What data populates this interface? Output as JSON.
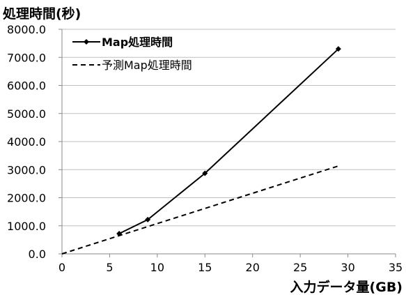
{
  "chart_data": {
    "type": "line",
    "ylabel": "処理時間(秒)",
    "xlabel": "入力データ量(GB)",
    "xlim": [
      0,
      35
    ],
    "ylim": [
      0,
      8000
    ],
    "x_ticks": [
      0,
      5,
      10,
      15,
      20,
      25,
      30,
      35
    ],
    "y_ticks": [
      "0.0",
      "1000.0",
      "2000.0",
      "3000.0",
      "4000.0",
      "5000.0",
      "6000.0",
      "7000.0",
      "8000.0"
    ],
    "grid": "horizontal",
    "legend_position": "top-left",
    "series": [
      {
        "name": "Map処理時間",
        "style": "solid",
        "marker": "diamond",
        "color": "#000000",
        "points": [
          [
            6,
            720
          ],
          [
            9,
            1220
          ],
          [
            15,
            2870
          ],
          [
            29,
            7300
          ]
        ]
      },
      {
        "name": "予測Map処理時間",
        "style": "dashed",
        "marker": "none",
        "color": "#000000",
        "points": [
          [
            0,
            0
          ],
          [
            29,
            3130
          ]
        ]
      }
    ]
  }
}
